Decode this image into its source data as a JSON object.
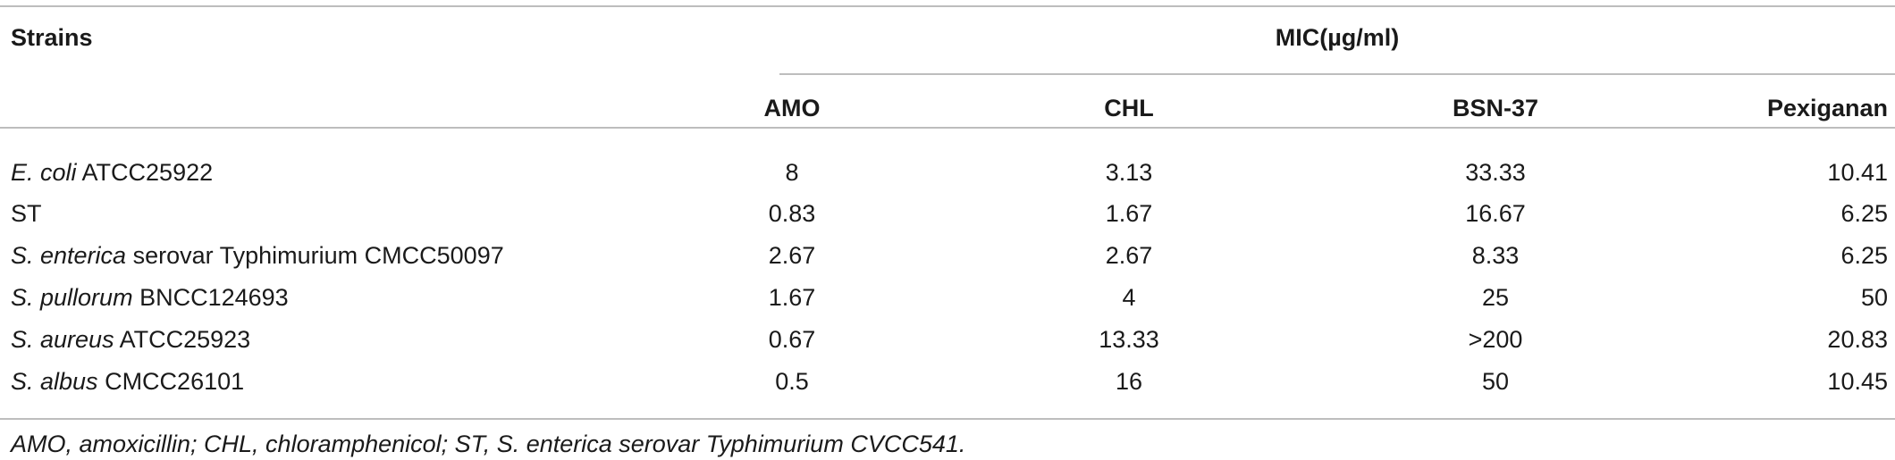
{
  "table": {
    "header": {
      "strains": "Strains",
      "mic": "MIC(µg/ml)"
    },
    "columns": [
      "AMO",
      "CHL",
      "BSN-37",
      "Pexiganan"
    ],
    "rows": [
      {
        "name_italic": "E. coli",
        "name_rest": " ATCC25922",
        "values": [
          "8",
          "3.13",
          "33.33",
          "10.41"
        ]
      },
      {
        "name_italic": "",
        "name_rest": "ST",
        "values": [
          "0.83",
          "1.67",
          "16.67",
          "6.25"
        ]
      },
      {
        "name_italic": "S. enterica",
        "name_rest": " serovar Typhimurium CMCC50097",
        "values": [
          "2.67",
          "2.67",
          "8.33",
          "6.25"
        ]
      },
      {
        "name_italic": "S. pullorum",
        "name_rest": " BNCC124693",
        "values": [
          "1.67",
          "4",
          "25",
          "50"
        ]
      },
      {
        "name_italic": "S. aureus",
        "name_rest": " ATCC25923",
        "values": [
          "0.67",
          "13.33",
          ">200",
          "20.83"
        ]
      },
      {
        "name_italic": "S. albus",
        "name_rest": " CMCC26101",
        "values": [
          "0.5",
          "16",
          "50",
          "10.45"
        ]
      }
    ],
    "footnote": "AMO, amoxicillin; CHL, chloramphenicol; ST, S. enterica serovar Typhimurium CVCC541."
  }
}
